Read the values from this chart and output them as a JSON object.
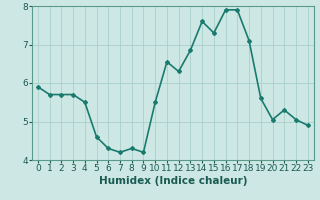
{
  "x": [
    0,
    1,
    2,
    3,
    4,
    5,
    6,
    7,
    8,
    9,
    10,
    11,
    12,
    13,
    14,
    15,
    16,
    17,
    18,
    19,
    20,
    21,
    22,
    23
  ],
  "y": [
    5.9,
    5.7,
    5.7,
    5.7,
    5.5,
    4.6,
    4.3,
    4.2,
    4.3,
    4.2,
    5.5,
    6.55,
    6.3,
    6.85,
    7.6,
    7.3,
    7.9,
    7.9,
    7.1,
    5.6,
    5.05,
    5.3,
    5.05,
    4.9
  ],
  "line_color": "#1a7a6e",
  "bg_color": "#cde8e4",
  "grid_color": "#aacfca",
  "xlabel": "Humidex (Indice chaleur)",
  "ylim": [
    4,
    8
  ],
  "xlim": [
    -0.5,
    23.5
  ],
  "yticks": [
    4,
    5,
    6,
    7,
    8
  ],
  "xticks": [
    0,
    1,
    2,
    3,
    4,
    5,
    6,
    7,
    8,
    9,
    10,
    11,
    12,
    13,
    14,
    15,
    16,
    17,
    18,
    19,
    20,
    21,
    22,
    23
  ],
  "marker": "D",
  "marker_size": 2.0,
  "line_width": 1.2,
  "xlabel_fontsize": 7.5,
  "tick_fontsize": 6.5,
  "spine_color": "#5a9a8a"
}
